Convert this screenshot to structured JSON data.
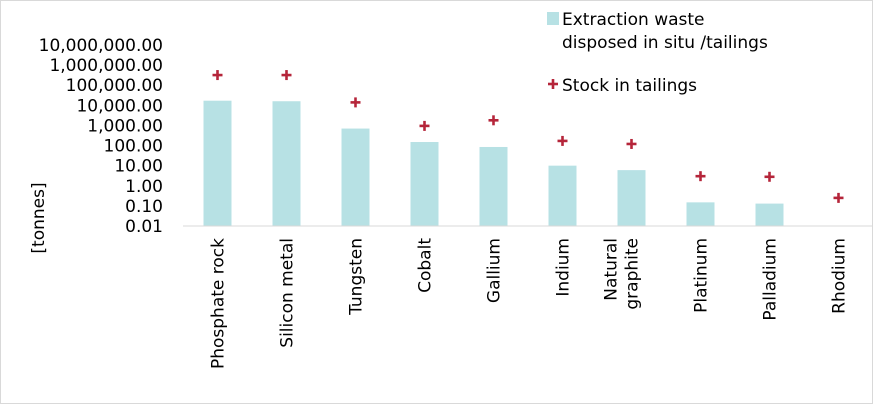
{
  "chart_data": {
    "type": "bar",
    "y_scale": "log",
    "ylabel": "[tonnes]",
    "ylim": [
      0.01,
      10000000
    ],
    "y_ticks": [
      "10,000,000.00",
      "1,000,000.00",
      "100,000.00",
      "10,000.00",
      "1,000.00",
      "100.00",
      "10.00",
      "1.00",
      "0.10",
      "0.01"
    ],
    "categories": [
      "Phosphate rock",
      "Silicon metal",
      "Tungsten",
      "Cobalt",
      "Gallium",
      "Indium",
      "Natural graphite",
      "Platinum",
      "Palladium",
      "Rhodium"
    ],
    "category_lines": [
      [
        "Phosphate rock"
      ],
      [
        "Silicon metal"
      ],
      [
        "Tungsten"
      ],
      [
        "Cobalt"
      ],
      [
        "Gallium"
      ],
      [
        "Indium"
      ],
      [
        "Natural",
        "graphite"
      ],
      [
        "Platinum"
      ],
      [
        "Palladium"
      ],
      [
        "Rhodium"
      ]
    ],
    "series": [
      {
        "name": "Extraction waste disposed in situ /tailings",
        "legend_lines": [
          "Extraction waste",
          "disposed in situ /tailings"
        ],
        "kind": "bar",
        "color": "#b7e1e4",
        "values": [
          17000,
          16000,
          700,
          150,
          85,
          10,
          6,
          0.15,
          0.13,
          null
        ]
      },
      {
        "name": "Stock in tailings",
        "kind": "marker",
        "marker": "plus",
        "color": "#b5253a",
        "values": [
          320000,
          320000,
          14000,
          950,
          1800,
          170,
          120,
          3,
          2.8,
          0.25
        ]
      }
    ],
    "legend_position": "top-right",
    "grid": false
  }
}
